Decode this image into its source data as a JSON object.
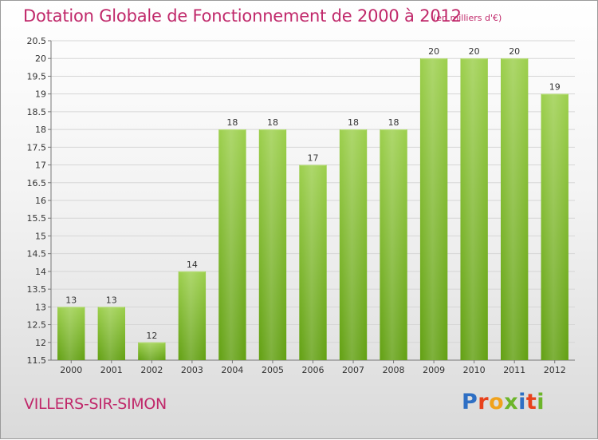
{
  "header": {
    "title": "Dotation Globale de Fonctionnement de 2000 à 2012",
    "unit": "(en milliers d'€)"
  },
  "footer": {
    "commune": "VILLERS-SIR-SIMON",
    "logo_text": "Proxiti"
  },
  "colors": {
    "title": "#c0286a",
    "bar_light": "#9ccf4c",
    "bar_dark": "#62a012",
    "logo": [
      "#2e6fc4",
      "#e8421c",
      "#f0a21c",
      "#6cb52a",
      "#2e6fc4",
      "#e8421c",
      "#6cb52a"
    ]
  },
  "chart_data": {
    "type": "bar",
    "categories": [
      "2000",
      "2001",
      "2002",
      "2003",
      "2004",
      "2005",
      "2006",
      "2007",
      "2008",
      "2009",
      "2010",
      "2011",
      "2012"
    ],
    "values": [
      13,
      13,
      12,
      14,
      18,
      18,
      17,
      18,
      18,
      20,
      20,
      20,
      19
    ],
    "title": "Dotation Globale de Fonctionnement de 2000 à 2012",
    "ylim": [
      11.5,
      20.5
    ],
    "yticks": [
      11.5,
      12,
      12.5,
      13,
      13.5,
      14,
      14.5,
      15,
      15.5,
      16,
      16.5,
      17,
      17.5,
      18,
      18.5,
      19,
      19.5,
      20,
      20.5
    ],
    "grid": true
  }
}
